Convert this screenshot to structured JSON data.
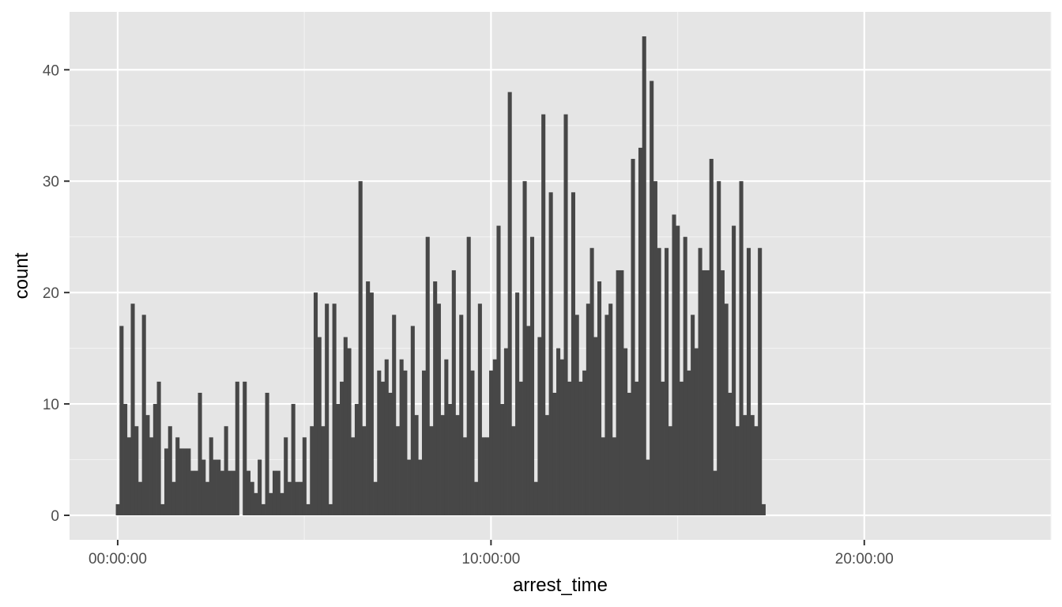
{
  "chart_data": {
    "type": "bar",
    "xlabel": "arrest_time",
    "ylabel": "count",
    "x_tick_labels": [
      "00:00:00",
      "10:00:00",
      "20:00:00"
    ],
    "x_ticks_hours": [
      0,
      10,
      20
    ],
    "xlim_hours": [
      -1.29,
      25.0
    ],
    "ylim": [
      -2.2,
      45.2
    ],
    "y_ticks": [
      0,
      10,
      20,
      30,
      40
    ],
    "bin_width_hours": 0.1,
    "x_start_hours": 0.0,
    "values": [
      1,
      17,
      10,
      7,
      19,
      8,
      3,
      18,
      9,
      7,
      10,
      12,
      1,
      6,
      8,
      3,
      7,
      6,
      6,
      6,
      4,
      4,
      11,
      5,
      3,
      7,
      5,
      5,
      4,
      8,
      4,
      4,
      12,
      0,
      12,
      4,
      3,
      2,
      5,
      1,
      11,
      2,
      4,
      4,
      2,
      7,
      3,
      10,
      3,
      3,
      7,
      1,
      8,
      20,
      16,
      8,
      19,
      1,
      19,
      10,
      12,
      16,
      15,
      7,
      10,
      30,
      8,
      21,
      20,
      3,
      13,
      12,
      14,
      11,
      18,
      8,
      14,
      13,
      5,
      17,
      9,
      5,
      13,
      25,
      8,
      21,
      19,
      9,
      14,
      10,
      22,
      9,
      18,
      7,
      25,
      13,
      3,
      19,
      7,
      7,
      13,
      14,
      26,
      10,
      15,
      38,
      8,
      20,
      12,
      30,
      17,
      25,
      3,
      16,
      36,
      9,
      29,
      11,
      15,
      14,
      36,
      12,
      29,
      18,
      12,
      13,
      19,
      24,
      16,
      21,
      7,
      18,
      19,
      7,
      22,
      22,
      15,
      11,
      32,
      12,
      33,
      43,
      5,
      39,
      30,
      24,
      12,
      24,
      8,
      27,
      26,
      12,
      25,
      13,
      18,
      15,
      24,
      22,
      22,
      32,
      4,
      30,
      22,
      19,
      11,
      26,
      8,
      30,
      9,
      24,
      9,
      8,
      24,
      1
    ],
    "colors": {
      "bar": "#474747",
      "panel": "#e5e5e5",
      "grid_major": "#ffffff",
      "grid_minor": "#f2f2f2"
    },
    "grid": true
  }
}
